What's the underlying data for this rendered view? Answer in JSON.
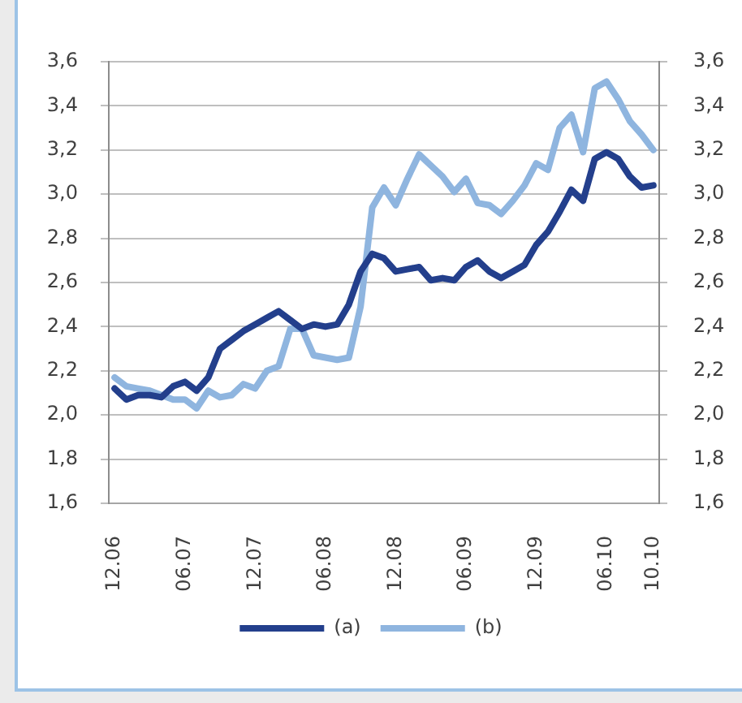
{
  "chart_data": {
    "type": "line",
    "categories": [
      "12.06",
      null,
      null,
      null,
      null,
      null,
      "06.07",
      null,
      null,
      null,
      null,
      null,
      "12.07",
      null,
      null,
      null,
      null,
      null,
      "06.08",
      null,
      null,
      null,
      null,
      null,
      "12.08",
      null,
      null,
      null,
      null,
      null,
      "06.09",
      null,
      null,
      null,
      null,
      null,
      "12.09",
      null,
      null,
      null,
      null,
      null,
      "06.10",
      null,
      null,
      null,
      "10.10"
    ],
    "series": [
      {
        "name": "(a)",
        "color": "#233f8c",
        "values": [
          2.12,
          2.07,
          2.09,
          2.09,
          2.08,
          2.13,
          2.15,
          2.11,
          2.17,
          2.3,
          2.34,
          2.38,
          2.41,
          2.44,
          2.47,
          2.43,
          2.39,
          2.41,
          2.4,
          2.41,
          2.5,
          2.65,
          2.73,
          2.71,
          2.65,
          2.66,
          2.67,
          2.61,
          2.62,
          2.61,
          2.67,
          2.7,
          2.65,
          2.62,
          2.65,
          2.68,
          2.77,
          2.83,
          2.92,
          3.02,
          2.97,
          3.16,
          3.19,
          3.16,
          3.08,
          3.03,
          3.04
        ]
      },
      {
        "name": "(b)",
        "color": "#8fb5df",
        "values": [
          2.17,
          2.13,
          2.12,
          2.11,
          2.09,
          2.07,
          2.07,
          2.03,
          2.11,
          2.08,
          2.09,
          2.14,
          2.12,
          2.2,
          2.22,
          2.39,
          2.39,
          2.27,
          2.26,
          2.25,
          2.26,
          2.49,
          2.94,
          3.03,
          2.95,
          3.07,
          3.18,
          3.13,
          3.08,
          3.01,
          3.07,
          2.96,
          2.95,
          2.91,
          2.97,
          3.04,
          3.14,
          3.11,
          3.3,
          3.36,
          3.19,
          3.48,
          3.51,
          3.43,
          3.33,
          3.27,
          3.2
        ]
      }
    ],
    "ylim": [
      1.6,
      3.6
    ],
    "yticks": [
      {
        "value": 1.6,
        "label": "1,6"
      },
      {
        "value": 1.8,
        "label": "1,8"
      },
      {
        "value": 2.0,
        "label": "2,0"
      },
      {
        "value": 2.2,
        "label": "2,2"
      },
      {
        "value": 2.4,
        "label": "2,4"
      },
      {
        "value": 2.6,
        "label": "2,6"
      },
      {
        "value": 2.8,
        "label": "2,8"
      },
      {
        "value": 3.0,
        "label": "3,0"
      },
      {
        "value": 3.2,
        "label": "3,2"
      },
      {
        "value": 3.4,
        "label": "3,4"
      },
      {
        "value": 3.6,
        "label": "3,6"
      }
    ],
    "y2lim": [
      1.6,
      3.6
    ],
    "y2ticks": [
      {
        "value": 1.6,
        "label": "1,6"
      },
      {
        "value": 1.8,
        "label": "1,8"
      },
      {
        "value": 2.0,
        "label": "2,0"
      },
      {
        "value": 2.2,
        "label": "2,2"
      },
      {
        "value": 2.4,
        "label": "2,4"
      },
      {
        "value": 2.6,
        "label": "2,6"
      },
      {
        "value": 2.8,
        "label": "2,8"
      },
      {
        "value": 3.0,
        "label": "3,0"
      },
      {
        "value": 3.2,
        "label": "3,2"
      },
      {
        "value": 3.4,
        "label": "3,4"
      },
      {
        "value": 3.6,
        "label": "3,6"
      }
    ],
    "grid": "y",
    "legend": "bottom"
  }
}
